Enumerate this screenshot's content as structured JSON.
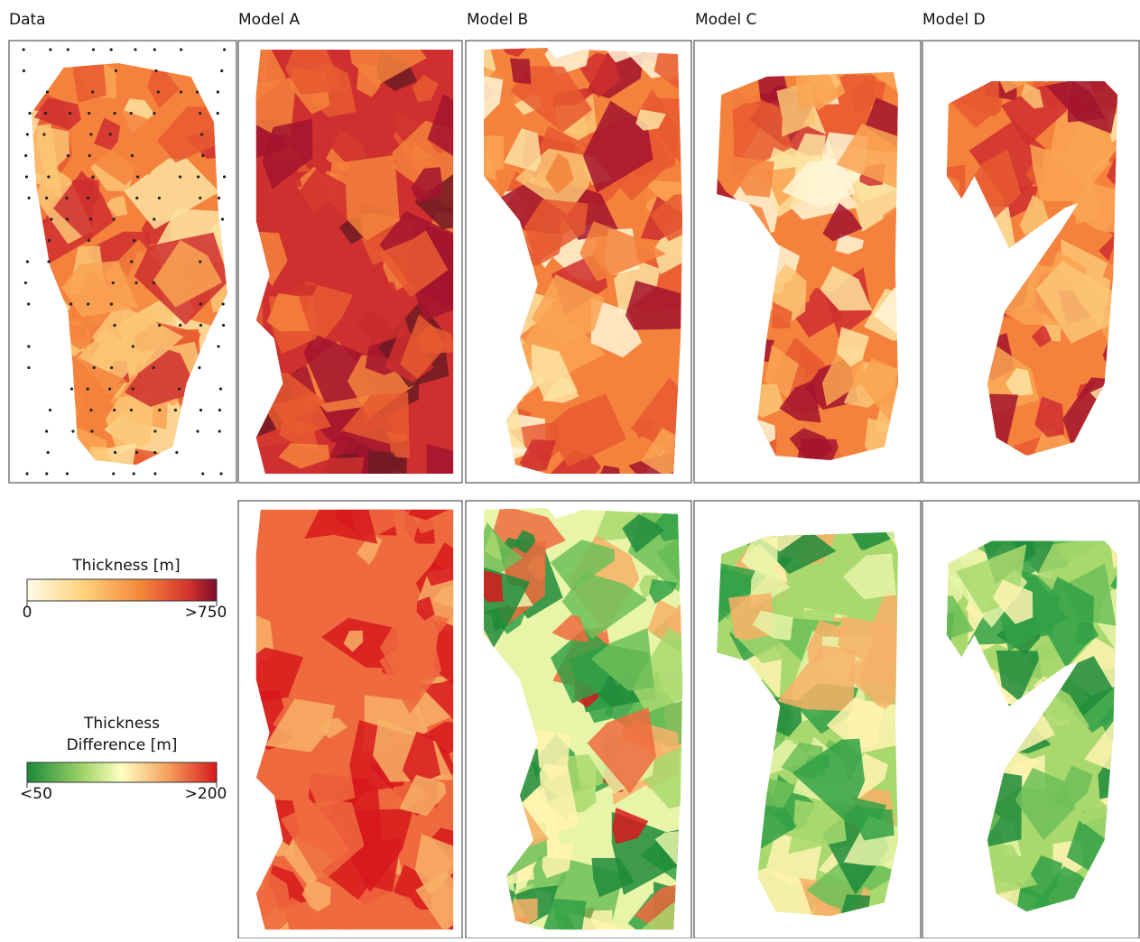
{
  "panels": [
    {
      "title": "Data"
    },
    {
      "title": "Model A"
    },
    {
      "title": "Model B"
    },
    {
      "title": "Model C"
    },
    {
      "title": "Model D"
    }
  ],
  "legend": {
    "thickness": {
      "title": "Thickness [m]",
      "min": "0",
      "max": ">750"
    },
    "difference": {
      "title_lines": [
        "Thickness",
        "Difference [m]"
      ],
      "min": "<50",
      "max": ">200"
    }
  }
}
